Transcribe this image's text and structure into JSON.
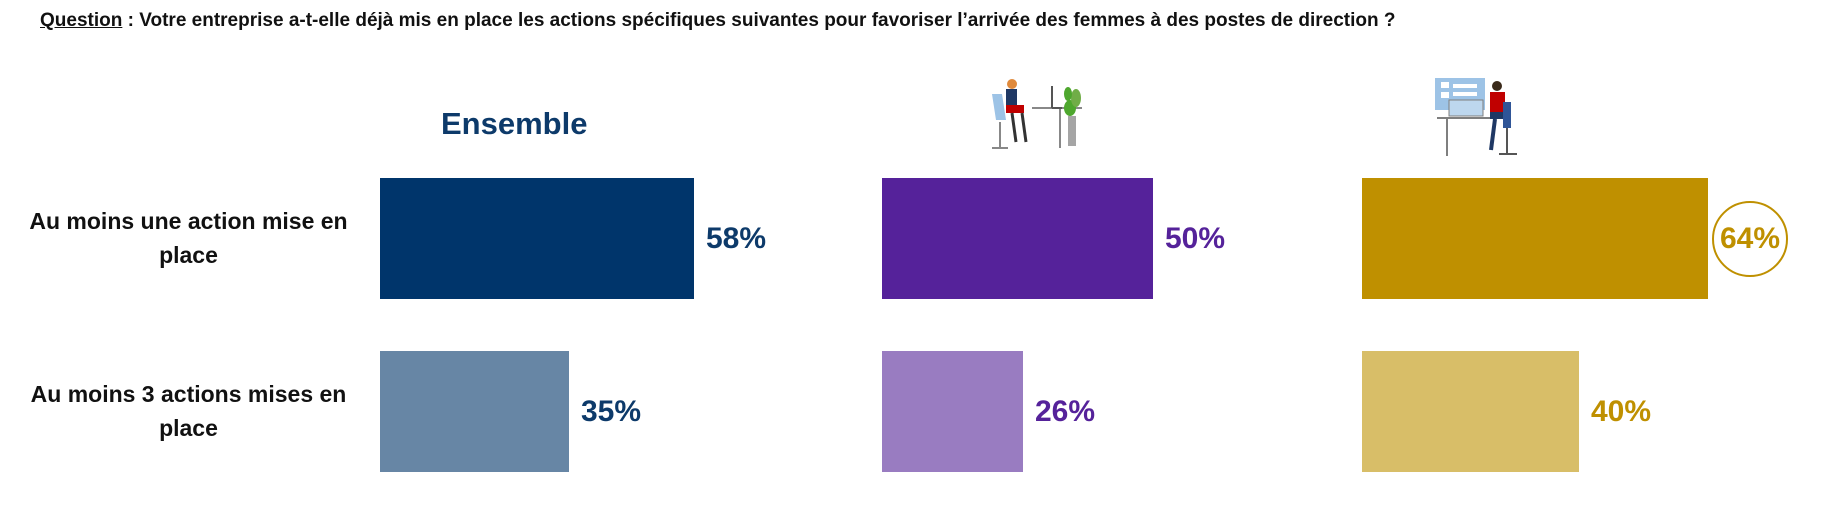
{
  "question": {
    "label": "Question",
    "text": " : Votre entreprise a-t-elle déjà mis en place les actions spécifiques suivantes pour favoriser l’arrivée des femmes à des postes de direction ?"
  },
  "chart_data": {
    "type": "bar",
    "orientation": "horizontal",
    "categories": [
      "Au moins une action mise en place",
      "Au moins 3 actions mises en place"
    ],
    "category_lines": [
      [
        "Au moins une action mise en",
        "place"
      ],
      [
        "Au moins 3 actions mises en",
        "place"
      ]
    ],
    "value_unit": "%",
    "series": [
      {
        "name": "Ensemble",
        "values": [
          58,
          35
        ],
        "colors": [
          "#00356b",
          "#6786a5"
        ],
        "label_colors": [
          "#0d3a6a",
          "#0d3a6a"
        ],
        "icon": ""
      },
      {
        "name": "",
        "values": [
          50,
          26
        ],
        "colors": [
          "#55229a",
          "#997cc1"
        ],
        "label_colors": [
          "#55229a",
          "#55229a"
        ],
        "icon": "woman-at-desk-icon"
      },
      {
        "name": "",
        "values": [
          64,
          40
        ],
        "colors": [
          "#bf9000",
          "#d8be68"
        ],
        "label_colors": [
          "#bf9000",
          "#bf9000"
        ],
        "icon": "man-at-computer-icon",
        "highlighted": [
          true,
          false
        ]
      }
    ]
  }
}
